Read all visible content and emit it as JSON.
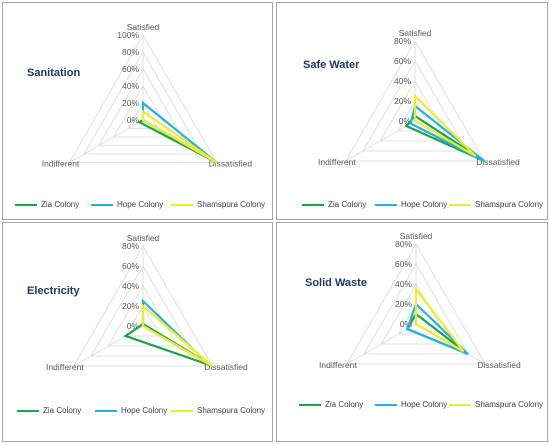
{
  "chart_data": [
    {
      "type": "radar",
      "title": "Sanitation",
      "axes": [
        "Satisfied",
        "Dissatisfied",
        "Indifferent"
      ],
      "ticks": [
        "0%",
        "20%",
        "40%",
        "60%",
        "80%",
        "100%"
      ],
      "rmax": 100,
      "series": [
        {
          "name": "Zia Colony",
          "values": [
            0,
            100,
            5
          ],
          "color": "#1aa34a"
        },
        {
          "name": "Hope Colony",
          "values": [
            20,
            100,
            0
          ],
          "color": "#1fb2e8"
        },
        {
          "name": "Shamspura Colony",
          "values": [
            10,
            100,
            0
          ],
          "color": "#f2ea2b"
        }
      ]
    },
    {
      "type": "radar",
      "title": "Safe Water",
      "axes": [
        "Satisfied",
        "Dissatisfied",
        "Indifferent"
      ],
      "ticks": [
        "0%",
        "20%",
        "40%",
        "60%",
        "80%"
      ],
      "rmax": 80,
      "series": [
        {
          "name": "Zia Colony",
          "values": [
            5,
            80,
            10
          ],
          "color": "#1aa34a"
        },
        {
          "name": "Hope Colony",
          "values": [
            15,
            80,
            5
          ],
          "color": "#1fb2e8"
        },
        {
          "name": "Shamspura Colony",
          "values": [
            25,
            70,
            0
          ],
          "color": "#f2ea2b"
        }
      ]
    },
    {
      "type": "radar",
      "title": "Electricity",
      "axes": [
        "Satisfied",
        "Dissatisfied",
        "Indifferent"
      ],
      "ticks": [
        "0%",
        "20%",
        "40%",
        "60%",
        "80%"
      ],
      "rmax": 80,
      "series": [
        {
          "name": "Zia Colony",
          "values": [
            2,
            80,
            20
          ],
          "color": "#1aa34a"
        },
        {
          "name": "Hope Colony",
          "values": [
            25,
            75,
            0
          ],
          "color": "#1fb2e8"
        },
        {
          "name": "Shamspura Colony",
          "values": [
            20,
            80,
            0
          ],
          "color": "#f2ea2b"
        }
      ]
    },
    {
      "type": "radar",
      "title": "Solid Waste",
      "axes": [
        "Satisfied",
        "Dissatisfied",
        "Indifferent"
      ],
      "ticks": [
        "0%",
        "20%",
        "40%",
        "60%",
        "80%"
      ],
      "rmax": 80,
      "series": [
        {
          "name": "Zia Colony",
          "values": [
            10,
            60,
            10
          ],
          "color": "#1aa34a"
        },
        {
          "name": "Hope Colony",
          "values": [
            20,
            60,
            10
          ],
          "color": "#1fb2e8"
        },
        {
          "name": "Shamspura Colony",
          "values": [
            35,
            55,
            0
          ],
          "color": "#f2ea2b"
        }
      ]
    }
  ]
}
